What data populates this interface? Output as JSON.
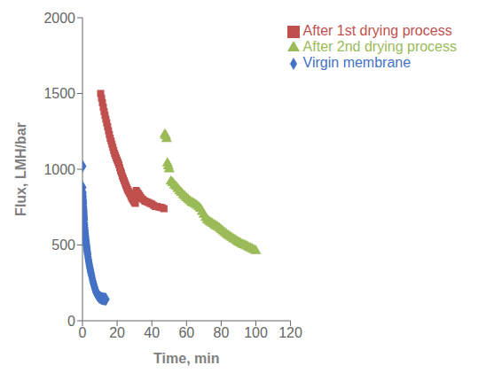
{
  "chart_data": {
    "type": "scatter",
    "xlabel": "Time, min",
    "ylabel": "Flux, LMH/bar",
    "xlim": [
      0,
      120
    ],
    "ylim": [
      0,
      2000
    ],
    "xticks": [
      0,
      20,
      40,
      60,
      80,
      100,
      120
    ],
    "yticks": [
      0,
      500,
      1000,
      1500,
      2000
    ],
    "grid": false,
    "legend": "upper right",
    "series": [
      {
        "name": "Virgin membrane",
        "color": "#4472C4",
        "marker": "diamond",
        "x": [
          0.05,
          0.1,
          0.15,
          0.2,
          0.25,
          0.3,
          0.35,
          0.4,
          0.45,
          0.5,
          0.55,
          0.6,
          0.65,
          0.7,
          0.75,
          0.8,
          0.85,
          0.9,
          0.95,
          1.0,
          1.1,
          1.2,
          1.3,
          1.4,
          1.5,
          1.6,
          1.7,
          1.8,
          1.9,
          2.0,
          2.1,
          2.2,
          2.3,
          2.4,
          2.5,
          2.6,
          2.7,
          2.8,
          2.9,
          3.0,
          3.2,
          3.4,
          3.6,
          3.8,
          4.0,
          4.2,
          4.4,
          4.6,
          4.8,
          5.0,
          5.3,
          5.6,
          5.9,
          6.2,
          6.5,
          6.8,
          7.1,
          7.4,
          7.7,
          8.0,
          8.4,
          8.8,
          9.2,
          9.6,
          10.0,
          10.5,
          11.0,
          11.5,
          12.0,
          12.5,
          13.0,
          13.5
        ],
        "values": [
          1020,
          880,
          850,
          840,
          825,
          815,
          800,
          790,
          780,
          770,
          755,
          745,
          735,
          725,
          715,
          705,
          695,
          685,
          675,
          665,
          645,
          630,
          615,
          600,
          588,
          575,
          563,
          552,
          541,
          530,
          519,
          509,
          499,
          490,
          480,
          471,
          462,
          453,
          444,
          435,
          420,
          405,
          392,
          379,
          366,
          354,
          342,
          331,
          320,
          310,
          295,
          280,
          265,
          252,
          240,
          228,
          216,
          205,
          195,
          185,
          175,
          168,
          163,
          158,
          155,
          150,
          148,
          146,
          145,
          144,
          143,
          142
        ]
      },
      {
        "name": "After 1st drying process",
        "color": "#C0504D",
        "marker": "square",
        "x": [
          10.5,
          11.0,
          11.5,
          12.0,
          12.5,
          13.0,
          13.5,
          14.0,
          14.5,
          15.0,
          15.5,
          16.0,
          16.5,
          17.0,
          17.5,
          18.0,
          18.5,
          19.0,
          19.5,
          20.0,
          20.5,
          21.0,
          21.5,
          22.0,
          22.5,
          23.0,
          23.5,
          24.0,
          24.5,
          25.0,
          25.5,
          26.0,
          26.5,
          27.0,
          27.5,
          28.0,
          28.5,
          29.0,
          29.5,
          30.0,
          30.5,
          31.0,
          31.5,
          32.0,
          32.5,
          33.0,
          33.5,
          34.0,
          35.0,
          36.0,
          37.0,
          38.0,
          39.0,
          40.0,
          41.0,
          42.0,
          43.0,
          44.0,
          45.0,
          46.0,
          47.0
        ],
        "values": [
          1500,
          1470,
          1440,
          1410,
          1380,
          1355,
          1330,
          1305,
          1280,
          1255,
          1230,
          1205,
          1185,
          1165,
          1145,
          1125,
          1105,
          1090,
          1075,
          1060,
          1045,
          1030,
          1010,
          990,
          975,
          955,
          940,
          925,
          910,
          895,
          880,
          865,
          855,
          845,
          835,
          820,
          808,
          800,
          790,
          780,
          775,
          860,
          850,
          840,
          835,
          825,
          815,
          808,
          800,
          790,
          785,
          780,
          775,
          770,
          762,
          755,
          755,
          750,
          748,
          745,
          740
        ]
      },
      {
        "name": "After 2nd drying process",
        "color": "#9BBB59",
        "marker": "triangle",
        "x": [
          47.5,
          48.0,
          48.5,
          49.0,
          49.5,
          50.0,
          51.0,
          52.0,
          53.0,
          54.0,
          55.0,
          56.0,
          57.0,
          58.0,
          59.0,
          60.0,
          61.0,
          62.0,
          63.0,
          64.0,
          65.0,
          66.0,
          67.0,
          68.0,
          69.0,
          70.0,
          71.0,
          72.0,
          73.0,
          74.0,
          75.0,
          76.0,
          77.0,
          78.0,
          79.0,
          80.0,
          81.0,
          82.0,
          83.0,
          84.0,
          85.0,
          86.0,
          87.0,
          88.0,
          89.0,
          90.0,
          91.0,
          92.0,
          93.0,
          94.0,
          95.0,
          96.0,
          97.0,
          98.0,
          99.0,
          100.0
        ],
        "values": [
          1230,
          1220,
          1200,
          1040,
          1020,
          1000,
          920,
          910,
          895,
          885,
          870,
          855,
          845,
          830,
          820,
          810,
          800,
          790,
          780,
          775,
          768,
          760,
          750,
          740,
          720,
          700,
          680,
          665,
          655,
          648,
          640,
          632,
          625,
          618,
          610,
          600,
          590,
          580,
          572,
          563,
          555,
          548,
          540,
          533,
          525,
          518,
          512,
          505,
          500,
          495,
          490,
          483,
          478,
          472,
          466,
          460
        ]
      }
    ]
  }
}
